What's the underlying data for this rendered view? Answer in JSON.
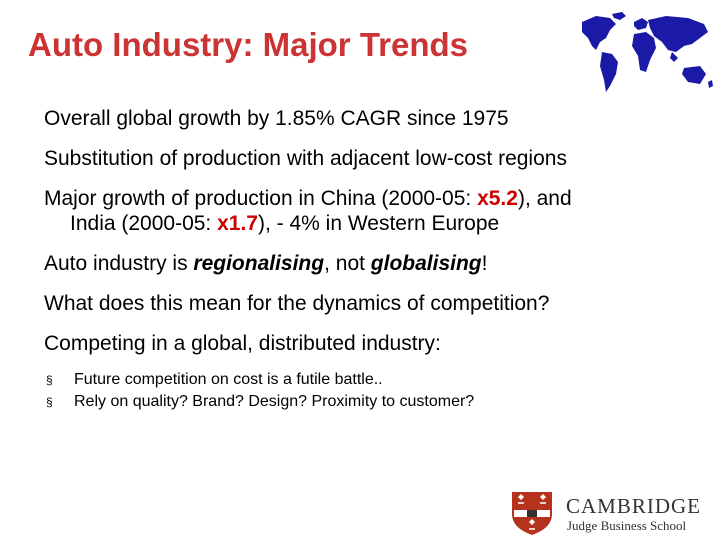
{
  "title": "Auto Industry: Major Trends",
  "colors": {
    "title": "#cc3333",
    "highlight": "#cc0000",
    "map": "#1a1aa6",
    "logo": "#b5331c"
  },
  "icons": {
    "map": "world-map-icon",
    "crest": "cambridge-crest-icon",
    "bullet": "square-bullet-icon"
  },
  "points": {
    "p1": "Overall global growth by 1.85% CAGR since 1975",
    "p2": "Substitution of production with adjacent low-cost regions",
    "p3": {
      "a": "Major growth of production in China (2000-05: ",
      "b": "x5.2",
      "c": "), and",
      "d": "India (2000-05: ",
      "e": "x1.7",
      "f": "), - 4% in Western Europe"
    },
    "p4": {
      "a": "Auto industry is ",
      "b": "regionalising",
      "c": ", not ",
      "d": "globalising",
      "e": "!"
    },
    "p5": "What does this mean for the dynamics of competition?",
    "p6": "Competing in a global, distributed industry:"
  },
  "sub_points": [
    "Future competition on cost is a futile battle..",
    "Rely on quality? Brand? Design? Proximity to customer?"
  ],
  "bullet_glyph": "§",
  "logo": {
    "name": "CAMBRIDGE",
    "subtitle": "Judge Business School"
  }
}
